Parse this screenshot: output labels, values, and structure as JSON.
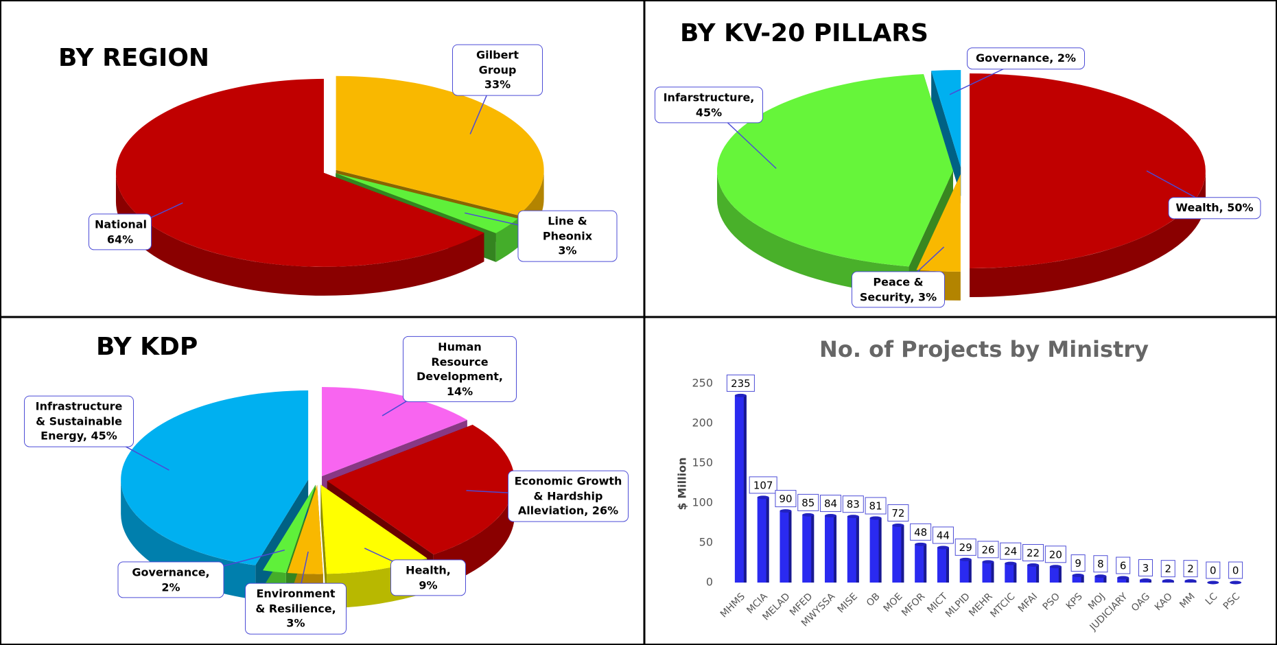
{
  "chart_data": [
    {
      "type": "pie",
      "title": "BY REGION",
      "categories": [
        "Gilbert Group",
        "Line & Pheonix",
        "National"
      ],
      "values": [
        33,
        3,
        64
      ],
      "value_labels": [
        "33%",
        "3%",
        "64%"
      ],
      "colors": [
        "#f9b800",
        "#5ff03a",
        "#c00000"
      ]
    },
    {
      "type": "pie",
      "title": "BY KV-20 PILLARS",
      "values": [
        50,
        3,
        45,
        2
      ],
      "value_labels": [
        "Wealth, 50%",
        "Peace & Security, 3%",
        "Infarstructure, 45%",
        "Governance, 2%"
      ],
      "colors": [
        "#c00000",
        "#f9b800",
        "#66f53a",
        "#00b0f0"
      ]
    },
    {
      "type": "pie",
      "title": "BY KDP",
      "values": [
        14,
        26,
        9,
        3,
        2,
        45
      ],
      "value_labels": [
        "Human Resource Development, 14%",
        "Economic Growth & Hardship Alleviation, 26%",
        "Health, 9%",
        "Environment & Resilience, 3%",
        "Governance, 2%",
        "Infrastructure & Sustainable Energy, 45%"
      ],
      "colors": [
        "#f865f0",
        "#c00000",
        "#ffff00",
        "#f9b800",
        "#5ff03a",
        "#00b0f0"
      ]
    },
    {
      "type": "bar",
      "title": "No. of Projects by Ministry",
      "ylabel": "$ Million",
      "categories": [
        "MHMS",
        "MCIA",
        "MELAD",
        "MFED",
        "MWYSSA",
        "MISE",
        "OB",
        "MOE",
        "MFOR",
        "MICT",
        "MLPID",
        "MEHR",
        "MTCIC",
        "MFAI",
        "PSO",
        "KPS",
        "MOJ",
        "JUDICIARY",
        "OAG",
        "KAO",
        "MM",
        "LC",
        "PSC"
      ],
      "values": [
        235,
        107,
        90,
        85,
        84,
        83,
        81,
        72,
        48,
        44,
        29,
        26,
        24,
        22,
        20,
        9,
        8,
        6,
        3,
        2,
        2,
        0,
        0
      ],
      "color": "#2a2af0",
      "ylim": [
        0,
        250
      ],
      "yticks": [
        0,
        50,
        100,
        150,
        200,
        250
      ]
    }
  ]
}
